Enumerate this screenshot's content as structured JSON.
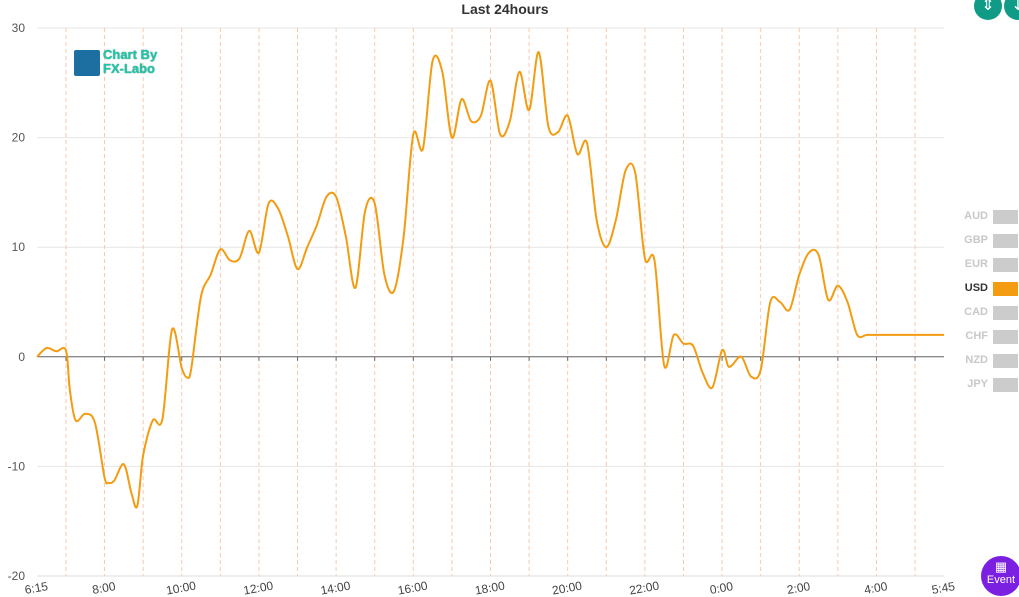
{
  "chart_data": {
    "type": "line",
    "title": "Last 24hours",
    "ylim": [
      -20,
      30
    ],
    "yticks": [
      -20,
      -10,
      0,
      10,
      20,
      30
    ],
    "xtick_labels": [
      "6:15",
      "8:00",
      "10:00",
      "12:00",
      "14:00",
      "16:00",
      "18:00",
      "20:00",
      "22:00",
      "0:00",
      "2:00",
      "4:00",
      "5:45"
    ],
    "xtick_hours": [
      0,
      1.75,
      3.75,
      5.75,
      7.75,
      9.75,
      11.75,
      13.75,
      15.75,
      17.75,
      19.75,
      21.75,
      23.5
    ],
    "xlim": [
      0,
      23.5
    ],
    "grid": true,
    "legend": "right",
    "series": [
      {
        "name": "USD",
        "color": "#f39c12",
        "x": [
          0,
          0.25,
          0.5,
          0.75,
          0.85,
          1.0,
          1.25,
          1.5,
          1.75,
          1.85,
          2.0,
          2.25,
          2.45,
          2.6,
          2.75,
          3.0,
          3.25,
          3.5,
          3.75,
          3.9,
          4.0,
          4.25,
          4.5,
          4.75,
          5.0,
          5.25,
          5.5,
          5.75,
          6.0,
          6.25,
          6.5,
          6.75,
          7.0,
          7.25,
          7.5,
          7.75,
          8.0,
          8.25,
          8.5,
          8.75,
          9.0,
          9.25,
          9.5,
          9.75,
          10.0,
          10.25,
          10.5,
          10.75,
          11.0,
          11.25,
          11.5,
          11.75,
          12.0,
          12.25,
          12.5,
          12.75,
          13.0,
          13.25,
          13.5,
          13.75,
          14.0,
          14.25,
          14.5,
          14.75,
          15.0,
          15.25,
          15.5,
          15.75,
          16.0,
          16.25,
          16.5,
          16.75,
          17.0,
          17.25,
          17.5,
          17.75,
          17.9,
          18.0,
          18.25,
          18.5,
          18.75,
          19.0,
          19.25,
          19.5,
          19.75,
          20.0,
          20.25,
          20.5,
          20.75,
          21.0,
          21.25,
          21.5,
          21.75,
          22.0,
          22.25,
          22.5,
          22.75,
          23.0,
          23.25,
          23.5
        ],
        "values": [
          0,
          0.8,
          0.5,
          0.6,
          -3.0,
          -5.8,
          -5.2,
          -6.0,
          -11.0,
          -11.5,
          -11.3,
          -9.8,
          -12.5,
          -13.6,
          -9.0,
          -5.8,
          -5.7,
          2.5,
          -1.0,
          -1.9,
          -1.0,
          5.5,
          7.5,
          9.8,
          8.8,
          9.0,
          11.5,
          9.5,
          14.0,
          13.5,
          11.0,
          8.0,
          10.0,
          12.0,
          14.6,
          14.6,
          11.0,
          6.3,
          13.3,
          14.0,
          7.5,
          6.0,
          11.0,
          20.3,
          19.0,
          27.0,
          26.0,
          20.0,
          23.5,
          21.5,
          22.0,
          25.2,
          20.3,
          21.5,
          26.0,
          22.5,
          27.8,
          21.0,
          20.5,
          22.0,
          18.5,
          19.5,
          12.5,
          10.0,
          12.5,
          17.0,
          16.8,
          9.0,
          8.8,
          -0.8,
          2.0,
          1.2,
          1.0,
          -1.5,
          -2.8,
          0.6,
          -0.8,
          -0.8,
          0.0,
          -1.8,
          -1.2,
          5.0,
          5.0,
          4.3,
          7.5,
          9.5,
          9.3,
          5.2,
          6.5,
          5.0,
          2.0,
          2.0,
          2.0,
          2.0,
          2.0,
          2.0,
          2.0,
          2.0,
          2.0,
          2.0
        ]
      }
    ]
  },
  "logo": {
    "line1": "Chart By",
    "line2": "FX-Labo"
  },
  "legend": {
    "items": [
      {
        "label": "AUD",
        "active": false
      },
      {
        "label": "GBP",
        "active": false
      },
      {
        "label": "EUR",
        "active": false
      },
      {
        "label": "USD",
        "active": true,
        "color": "#f39c12"
      },
      {
        "label": "CAD",
        "active": false
      },
      {
        "label": "CHF",
        "active": false
      },
      {
        "label": "NZD",
        "active": false
      },
      {
        "label": "JPY",
        "active": false
      }
    ]
  },
  "toolbar": {
    "split_icon": "compress-icon",
    "fit_icon": "expand-icon"
  },
  "event_button": {
    "label": "Event",
    "icon": "calendar-icon"
  }
}
